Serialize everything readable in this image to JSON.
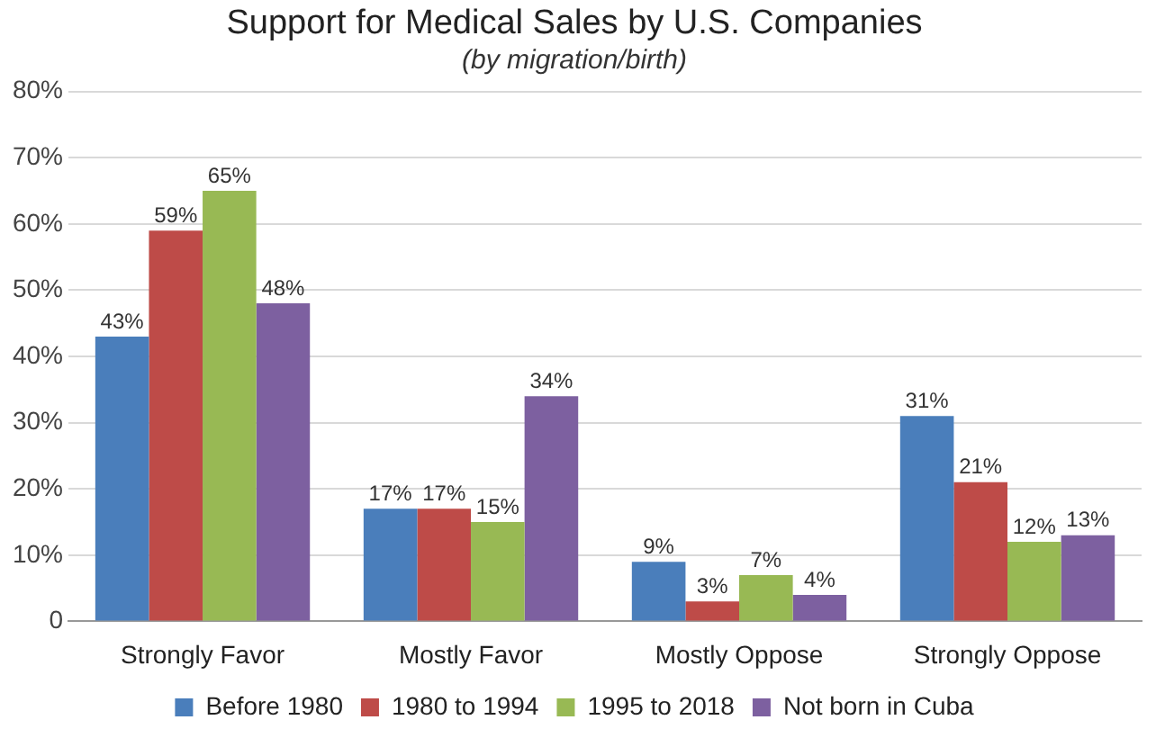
{
  "chart_data": {
    "type": "bar",
    "title": "Support for Medical Sales by U.S. Companies",
    "subtitle": "(by migration/birth)",
    "categories": [
      "Strongly Favor",
      "Mostly Favor",
      "Mostly Oppose",
      "Strongly Oppose"
    ],
    "series": [
      {
        "name": "Before 1980",
        "color": "#4a7ebb",
        "values": [
          43,
          17,
          9,
          31
        ],
        "value_labels": [
          "43%",
          "17%",
          "9%",
          "31%"
        ]
      },
      {
        "name": "1980 to 1994",
        "color": "#be4b48",
        "values": [
          59,
          17,
          3,
          21
        ],
        "value_labels": [
          "59%",
          "17%",
          "3%",
          "21%"
        ]
      },
      {
        "name": "1995 to 2018",
        "color": "#98b954",
        "values": [
          65,
          15,
          7,
          12
        ],
        "value_labels": [
          "65%",
          "15%",
          "7%",
          "12%"
        ]
      },
      {
        "name": "Not born in Cuba",
        "color": "#7d60a0",
        "values": [
          48,
          34,
          4,
          13
        ],
        "value_labels": [
          "48%",
          "34%",
          "4%",
          "13%"
        ]
      }
    ],
    "ylim": [
      0,
      80
    ],
    "yticks": [
      0,
      {
        "value": 10,
        "label": "10%"
      },
      {
        "value": 20,
        "label": "20%"
      },
      {
        "value": 30,
        "label": "30%"
      },
      {
        "value": 40,
        "label": "40%"
      },
      {
        "value": 50,
        "label": "50%"
      },
      {
        "value": 60,
        "label": "60%"
      },
      {
        "value": 70,
        "label": "70%"
      },
      {
        "value": 80,
        "label": "80%"
      }
    ],
    "grid": "y",
    "legend": "bottom"
  }
}
